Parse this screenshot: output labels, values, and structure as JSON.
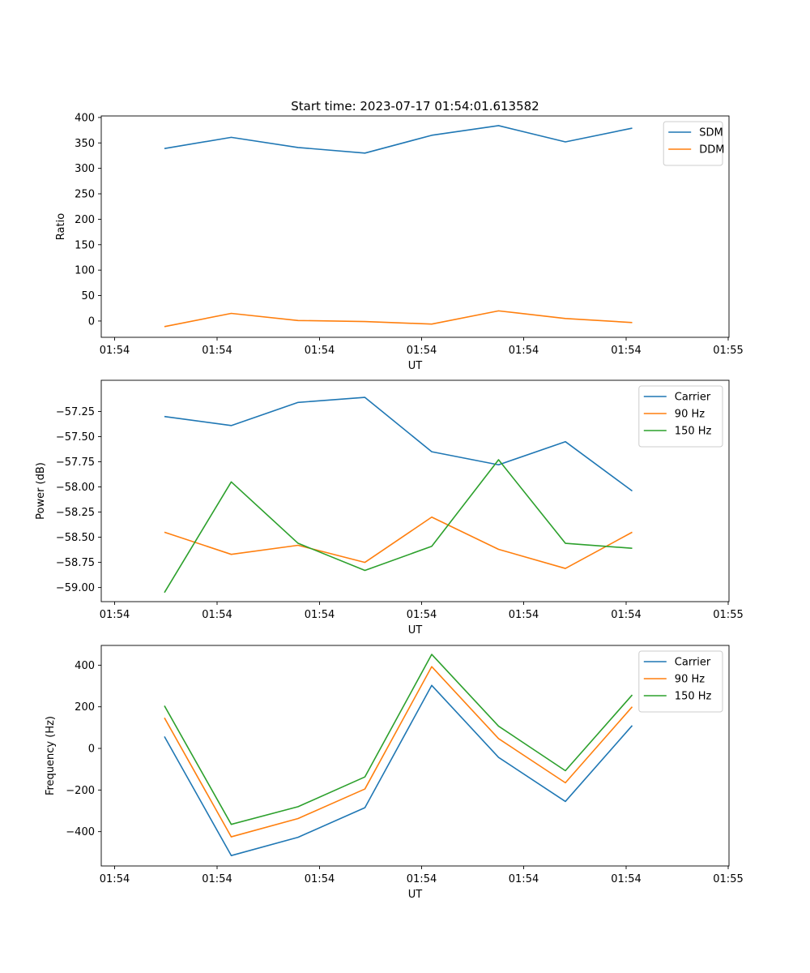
{
  "chart_data": [
    {
      "type": "line",
      "title": "Start time: 2023-07-17 01:54:01.613582",
      "xlabel": "UT",
      "ylabel": "Ratio",
      "x_tick_labels": [
        "01:54",
        "01:54",
        "01:54",
        "01:54",
        "01:54",
        "01:54",
        "01:54",
        "01:55"
      ],
      "ylim": [
        -32,
        403
      ],
      "yticks": [
        0,
        50,
        100,
        150,
        200,
        250,
        300,
        350,
        400
      ],
      "ytick_labels": [
        "0",
        "50",
        "100",
        "150",
        "200",
        "250",
        "300",
        "350",
        "400"
      ],
      "legend_position": "top-right",
      "series": [
        {
          "name": "SDM",
          "color": "#1f77b4",
          "values": [
            339,
            361,
            341,
            330,
            365,
            384,
            352,
            379
          ]
        },
        {
          "name": "DDM",
          "color": "#ff7f0e",
          "values": [
            -11,
            15,
            1,
            -1,
            -6,
            20,
            5,
            -3
          ]
        }
      ]
    },
    {
      "type": "line",
      "title": "",
      "xlabel": "UT",
      "ylabel": "Power (dB)",
      "x_tick_labels": [
        "01:54",
        "01:54",
        "01:54",
        "01:54",
        "01:54",
        "01:54",
        "01:54",
        "01:55"
      ],
      "ylim": [
        -59.14,
        -56.94
      ],
      "yticks": [
        -57.25,
        -57.5,
        -57.75,
        -58.0,
        -58.25,
        -58.5,
        -58.75,
        -59.0
      ],
      "ytick_labels": [
        "−57.25",
        "−57.50",
        "−57.75",
        "−58.00",
        "−58.25",
        "−58.50",
        "−58.75",
        "−59.00"
      ],
      "legend_position": "top-right",
      "series": [
        {
          "name": "Carrier",
          "color": "#1f77b4",
          "values": [
            -57.3,
            -57.39,
            -57.16,
            -57.11,
            -57.65,
            -57.78,
            -57.55,
            -58.04
          ]
        },
        {
          "name": "90 Hz",
          "color": "#ff7f0e",
          "values": [
            -58.45,
            -58.67,
            -58.58,
            -58.75,
            -58.3,
            -58.62,
            -58.81,
            -58.45
          ]
        },
        {
          "name": "150 Hz",
          "color": "#2ca02c",
          "values": [
            -59.05,
            -57.95,
            -58.56,
            -58.83,
            -58.59,
            -57.73,
            -58.56,
            -58.61
          ]
        }
      ]
    },
    {
      "type": "line",
      "title": "",
      "xlabel": "UT",
      "ylabel": "Frequency (Hz)",
      "x_tick_labels": [
        "01:54",
        "01:54",
        "01:54",
        "01:54",
        "01:54",
        "01:54",
        "01:54",
        "01:55"
      ],
      "ylim": [
        -565,
        495
      ],
      "yticks": [
        400,
        200,
        0,
        -200,
        -400
      ],
      "ytick_labels": [
        "400",
        "200",
        "0",
        "−200",
        "−400"
      ],
      "legend_position": "top-right",
      "series": [
        {
          "name": "Carrier",
          "color": "#1f77b4",
          "values": [
            57,
            -515,
            -427,
            -285,
            303,
            -43,
            -255,
            110
          ]
        },
        {
          "name": "90 Hz",
          "color": "#ff7f0e",
          "values": [
            147,
            -425,
            -337,
            -195,
            393,
            47,
            -165,
            200
          ]
        },
        {
          "name": "150 Hz",
          "color": "#2ca02c",
          "values": [
            205,
            -365,
            -280,
            -137,
            452,
            107,
            -107,
            257
          ]
        }
      ]
    }
  ]
}
